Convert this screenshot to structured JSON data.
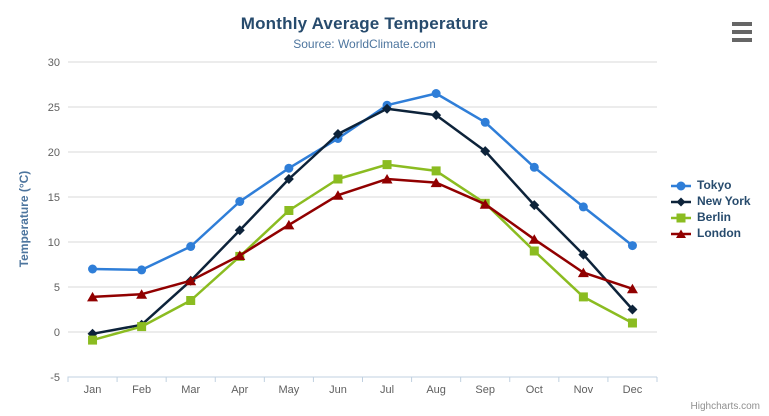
{
  "chart_data": {
    "type": "line",
    "title": "Monthly Average Temperature",
    "subtitle": "Source: WorldClimate.com",
    "categories": [
      "Jan",
      "Feb",
      "Mar",
      "Apr",
      "May",
      "Jun",
      "Jul",
      "Aug",
      "Sep",
      "Oct",
      "Nov",
      "Dec"
    ],
    "series": [
      {
        "name": "Tokyo",
        "color": "#2f7ed8",
        "marker": "circle",
        "values": [
          7.0,
          6.9,
          9.5,
          14.5,
          18.2,
          21.5,
          25.2,
          26.5,
          23.3,
          18.3,
          13.9,
          9.6
        ]
      },
      {
        "name": "New York",
        "color": "#0d233a",
        "marker": "diamond",
        "values": [
          -0.2,
          0.8,
          5.7,
          11.3,
          17.0,
          22.0,
          24.8,
          24.1,
          20.1,
          14.1,
          8.6,
          2.5
        ]
      },
      {
        "name": "Berlin",
        "color": "#8bbc21",
        "marker": "square",
        "values": [
          -0.9,
          0.6,
          3.5,
          8.4,
          13.5,
          17.0,
          18.6,
          17.9,
          14.3,
          9.0,
          3.9,
          1.0
        ]
      },
      {
        "name": "London",
        "color": "#910000",
        "marker": "triangle",
        "values": [
          3.9,
          4.2,
          5.7,
          8.5,
          11.9,
          15.2,
          17.0,
          16.6,
          14.2,
          10.3,
          6.6,
          4.8
        ]
      }
    ],
    "xlabel": "",
    "ylabel": "Temperature (°C)",
    "ylim": [
      -5,
      30
    ],
    "ytick_step": 5,
    "grid": true,
    "legend_position": "right"
  },
  "credits": {
    "label": "Highcharts.com"
  },
  "export_menu": {
    "icon": "hamburger-menu-icon"
  },
  "colors": {
    "background": "#ffffff",
    "grid": "#d8d8d8",
    "axis_line": "#c0d0e0",
    "tick_label": "#606060",
    "title": "#274b6d",
    "subtitle": "#4d759e",
    "axis_title": "#4d759e",
    "legend_text": "#274b6d",
    "credits": "#909090"
  }
}
